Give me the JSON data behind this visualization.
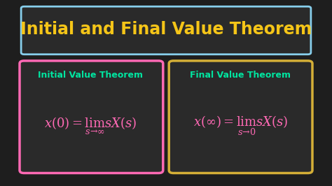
{
  "bg_color": "#1e1e1e",
  "title_text": "Initial and Final Value Theorem",
  "title_color": "#f5c518",
  "title_border_color": "#87ceeb",
  "title_bg_color": "#2a2a2a",
  "left_box_border": "#ff69b4",
  "right_box_border": "#d4af37",
  "box_bg": "#2a2a2a",
  "label_color": "#00e5a0",
  "formula_color": "#ff69b4",
  "formula_color_right": "#ff69b4",
  "left_label": "Initial Value Theorem",
  "right_label": "Final Value Theorem",
  "left_formula": "$x(0) = \\lim_{s\\to\\infty} sX(s)$",
  "right_formula": "$x(\\infty) = \\lim_{s\\to 0} sX(s)$"
}
